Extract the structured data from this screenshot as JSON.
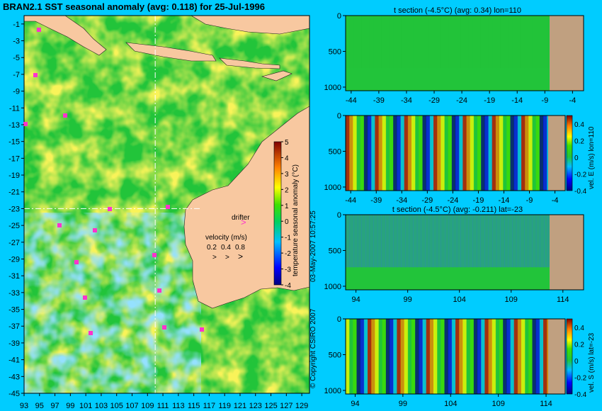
{
  "map": {
    "title": "BRAN2.1 SST seasonal anomaly (avg: 0.118) for 25-Jul-1996",
    "lon_ticks": [
      93,
      95,
      97,
      99,
      101,
      103,
      105,
      107,
      109,
      111,
      113,
      115,
      117,
      119,
      121,
      123,
      125,
      127,
      129
    ],
    "lat_ticks": [
      -1,
      -3,
      -5,
      -7,
      -9,
      -11,
      -13,
      -15,
      -17,
      -19,
      -21,
      -23,
      -25,
      -27,
      -29,
      -31,
      -33,
      -35,
      -37,
      -39,
      -41,
      -43,
      -45
    ],
    "xlim": [
      93,
      130
    ],
    "ylim": [
      -45,
      0
    ],
    "section_lon": 110,
    "section_lat": -23,
    "colorbar": {
      "label": "temperature seasonal anomaly (°C)",
      "ticks": [
        5,
        4,
        3,
        2,
        1,
        0,
        -1,
        -2,
        -3,
        -4
      ],
      "range": [
        -4,
        5
      ]
    },
    "drifter_label": "drifter",
    "velocity_label": "velocity (m/s)",
    "velocity_scale": [
      "0.2",
      "0.4",
      "0.8"
    ],
    "velocity_arrows": [
      ">",
      ">",
      ">"
    ]
  },
  "chart_data": [
    {
      "type": "heatmap",
      "title": "t section (-4.5°C) (avg: 0.34) lon=110",
      "x_ticks": [
        -44,
        -39,
        -34,
        -29,
        -24,
        -19,
        -14,
        -9,
        -4
      ],
      "xlim": [
        -45,
        -2
      ],
      "y_ticks": [
        0,
        500,
        1000
      ],
      "ylim": [
        0,
        1050
      ],
      "colorbar": null
    },
    {
      "type": "heatmap",
      "title": "",
      "x_ticks": [
        -44,
        -39,
        -34,
        -29,
        -24,
        -19,
        -14,
        -9,
        -4
      ],
      "xlim": [
        -45,
        -2
      ],
      "y_ticks": [
        0,
        500,
        1000
      ],
      "ylim": [
        0,
        1050
      ],
      "colorbar": {
        "label": "vel. E (m/s) lon=110",
        "ticks": [
          "0.4",
          "0.2",
          "0",
          "-0.2",
          "-0.4"
        ],
        "range": [
          -0.4,
          0.5
        ]
      }
    },
    {
      "type": "heatmap",
      "title": "t section (-4.5°C) (avg: -0.211) lat=-23",
      "x_ticks": [
        94,
        99,
        104,
        109,
        114
      ],
      "xlim": [
        93,
        116
      ],
      "y_ticks": [
        0,
        500,
        1000
      ],
      "ylim": [
        0,
        1050
      ],
      "colorbar": null
    },
    {
      "type": "heatmap",
      "title": "",
      "x_ticks": [
        94,
        99,
        104,
        109,
        114
      ],
      "xlim": [
        93,
        116
      ],
      "y_ticks": [
        0,
        500,
        1000
      ],
      "ylim": [
        0,
        1050
      ],
      "colorbar": {
        "label": "vel. S (m/s) lat=-23",
        "ticks": [
          "0.4",
          "0.2",
          "0",
          "-0.2",
          "-0.4"
        ],
        "range": [
          -0.4,
          0.5
        ]
      }
    }
  ],
  "side_note": "03-May-2007 10:57:25",
  "copyright": "© Copyright CSIRO 2007",
  "colors": {
    "background": "#00ccff",
    "ocean": "#22c43a",
    "land": "#f8c8a0",
    "section_land": "#c0a080",
    "drifter": "#ff33cc",
    "guide_line": "#ffffff"
  }
}
